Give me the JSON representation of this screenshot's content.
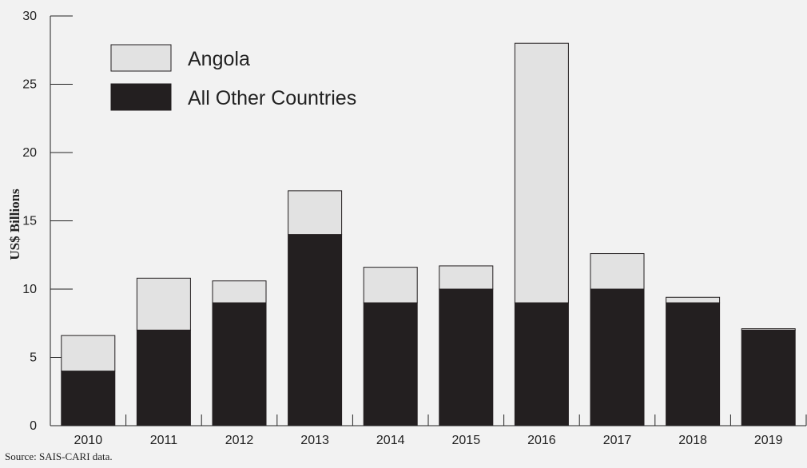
{
  "chart_data": {
    "type": "bar",
    "stacked": true,
    "title": "",
    "xlabel": "",
    "ylabel": "US$ Billions",
    "ylim": [
      0,
      30
    ],
    "yticks": [
      0,
      5,
      10,
      15,
      20,
      25,
      30
    ],
    "categories": [
      "2010",
      "2011",
      "2012",
      "2013",
      "2014",
      "2015",
      "2016",
      "2017",
      "2018",
      "2019"
    ],
    "series": [
      {
        "name": "All Other Countries",
        "color": "#231f20",
        "values": [
          4.0,
          7.0,
          9.0,
          14.0,
          9.0,
          10.0,
          9.0,
          10.0,
          9.0,
          7.0
        ]
      },
      {
        "name": "Angola",
        "color": "#e2e2e2",
        "values": [
          2.6,
          3.8,
          1.6,
          3.2,
          2.6,
          1.7,
          19.0,
          2.6,
          0.4,
          0.1
        ]
      }
    ],
    "legend_order": [
      "Angola",
      "All Other Countries"
    ],
    "legend_position": "top-left",
    "grid": false
  },
  "source_note": "Source: SAIS-CARI data."
}
